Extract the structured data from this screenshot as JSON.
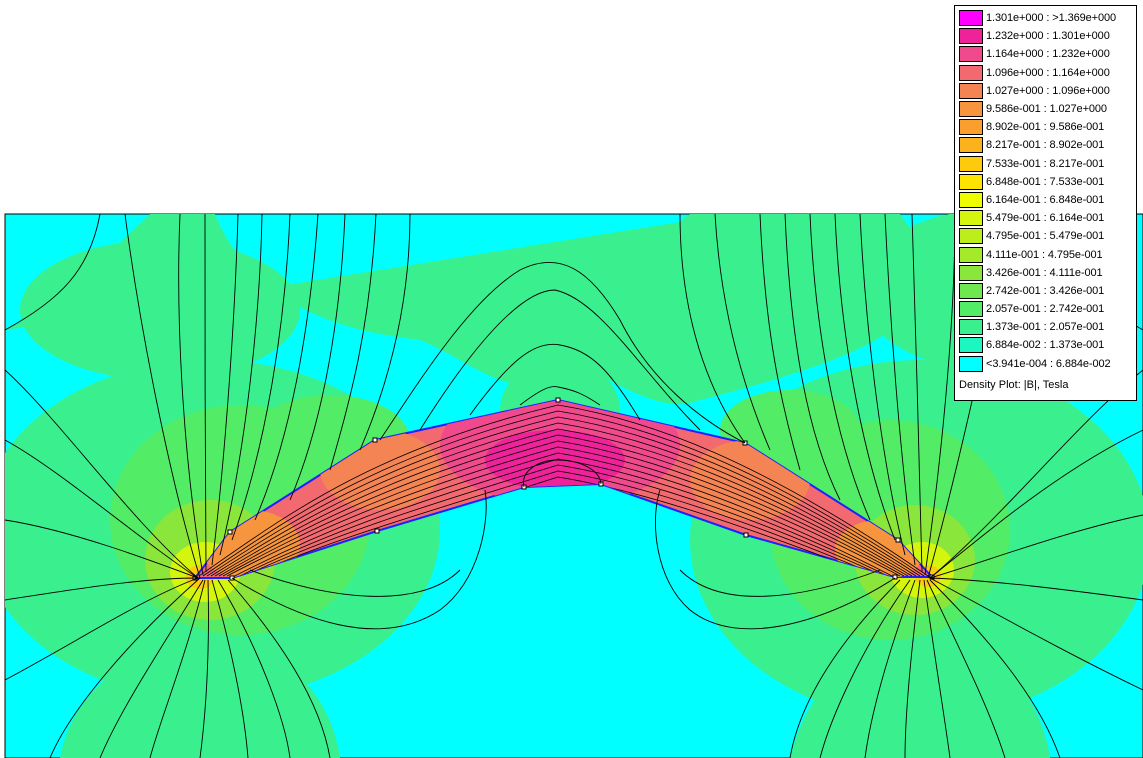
{
  "plot": {
    "title": "Density Plot: |B|, Tesla",
    "background_color": "#00ffff",
    "legend": [
      {
        "range": "1.301e+000 : >1.369e+000",
        "color": "#ff00ff"
      },
      {
        "range": "1.232e+000 : 1.301e+000",
        "color": "#ee2299"
      },
      {
        "range": "1.164e+000 : 1.232e+000",
        "color": "#f04a8c"
      },
      {
        "range": "1.096e+000 : 1.164e+000",
        "color": "#f26a70"
      },
      {
        "range": "1.027e+000 : 1.096e+000",
        "color": "#f58455"
      },
      {
        "range": "9.586e-001 : 1.027e+000",
        "color": "#f7943e"
      },
      {
        "range": "8.902e-001 : 9.586e-001",
        "color": "#fa9e2e"
      },
      {
        "range": "8.217e-001 : 8.902e-001",
        "color": "#fbb21c"
      },
      {
        "range": "7.533e-001 : 8.217e-001",
        "color": "#fdca0c"
      },
      {
        "range": "6.848e-001 : 7.533e-001",
        "color": "#fde400"
      },
      {
        "range": "6.164e-001 : 6.848e-001",
        "color": "#eefc00"
      },
      {
        "range": "5.479e-001 : 6.164e-001",
        "color": "#d4f50e"
      },
      {
        "range": "4.795e-001 : 5.479e-001",
        "color": "#bcee1c"
      },
      {
        "range": "4.111e-001 : 4.795e-001",
        "color": "#a5ea2a"
      },
      {
        "range": "3.426e-001 : 4.111e-001",
        "color": "#8ae63a"
      },
      {
        "range": "2.742e-001 : 3.426e-001",
        "color": "#6ee84e"
      },
      {
        "range": "2.057e-001 : 2.742e-001",
        "color": "#52ec66"
      },
      {
        "range": "1.373e-001 : 2.057e-001",
        "color": "#3af08e"
      },
      {
        "range": "6.884e-002 : 1.373e-001",
        "color": "#1ef6c2"
      },
      {
        "range": "<3.941e-004 : 6.884e-002",
        "color": "#00ffff"
      }
    ]
  }
}
